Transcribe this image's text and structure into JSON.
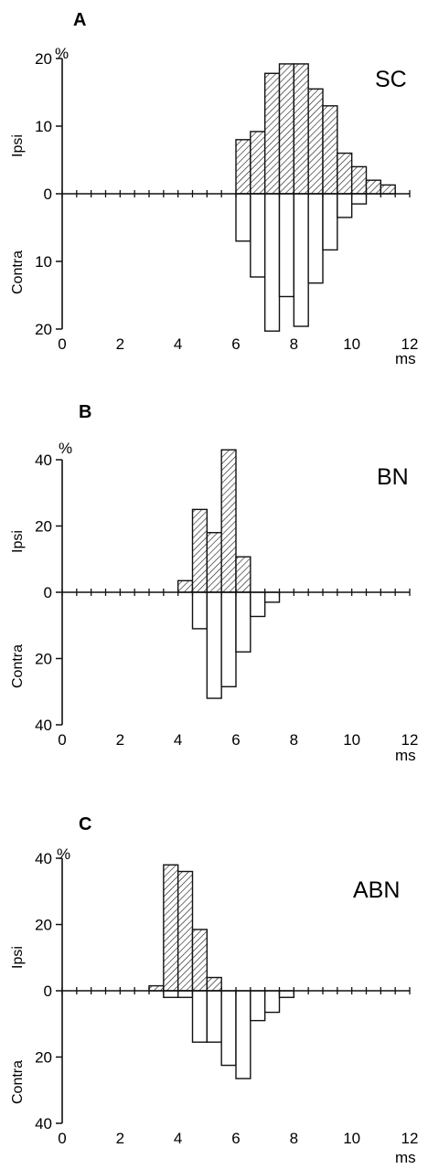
{
  "colors": {
    "ink": "#111111",
    "background": "#ffffff",
    "hatch": "#111111"
  },
  "chart_data": [
    {
      "type": "bar",
      "panel": "A",
      "title": "SC",
      "xlabel": "ms",
      "ylabel_unit": "%",
      "upper_label": "Ipsi",
      "lower_label": "Contra",
      "xlim": [
        0,
        12
      ],
      "ylim": [
        -20,
        20
      ],
      "x_tick_labels": [
        "0",
        "2",
        "4",
        "6",
        "8",
        "10",
        "12"
      ],
      "y_tick_labels": [
        "20",
        "10",
        "0",
        "10",
        "20"
      ],
      "bin_width": 0.5,
      "series": [
        {
          "name": "Ipsi",
          "x": [
            6.25,
            6.75,
            7.25,
            7.75,
            8.25,
            8.75,
            9.25,
            9.75,
            10.25,
            10.75,
            11.25
          ],
          "values": [
            8,
            9.2,
            17.8,
            19.2,
            19.2,
            15.5,
            13,
            6,
            4,
            2,
            1.3
          ]
        },
        {
          "name": "Contra",
          "x": [
            6.25,
            6.75,
            7.25,
            7.75,
            8.25,
            8.75,
            9.25,
            9.75,
            10.25,
            10.75
          ],
          "values": [
            7,
            12.3,
            20.3,
            15.2,
            19.6,
            13.2,
            8.3,
            3.5,
            1.5,
            0
          ]
        }
      ]
    },
    {
      "type": "bar",
      "panel": "B",
      "title": "BN",
      "xlabel": "ms",
      "ylabel_unit": "%",
      "upper_label": "Ipsi",
      "lower_label": "Contra",
      "xlim": [
        0,
        12
      ],
      "ylim": [
        -40,
        40
      ],
      "x_tick_labels": [
        "0",
        "2",
        "4",
        "6",
        "8",
        "10",
        "12"
      ],
      "y_tick_labels": [
        "40",
        "20",
        "0",
        "20",
        "40"
      ],
      "bin_width": 0.5,
      "series": [
        {
          "name": "Ipsi",
          "x": [
            4.25,
            4.75,
            5.25,
            5.75,
            6.25
          ],
          "values": [
            3.5,
            25,
            18,
            43,
            10.7
          ]
        },
        {
          "name": "Contra",
          "x": [
            4.25,
            4.75,
            5.25,
            5.75,
            6.25,
            6.75,
            7.25
          ],
          "values": [
            0,
            11,
            32,
            28.5,
            18,
            7.3,
            3
          ]
        }
      ]
    },
    {
      "type": "bar",
      "panel": "C",
      "title": "ABN",
      "xlabel": "ms",
      "ylabel_unit": "%",
      "upper_label": "Ipsi",
      "lower_label": "Contra",
      "xlim": [
        0,
        12
      ],
      "ylim": [
        -40,
        40
      ],
      "x_tick_labels": [
        "0",
        "2",
        "4",
        "6",
        "8",
        "10",
        "12"
      ],
      "y_tick_labels": [
        "40",
        "20",
        "0",
        "20",
        "40"
      ],
      "bin_width": 0.5,
      "series": [
        {
          "name": "Ipsi",
          "x": [
            3.25,
            3.75,
            4.25,
            4.75,
            5.25
          ],
          "values": [
            1.5,
            38,
            36,
            18.5,
            4
          ]
        },
        {
          "name": "Contra",
          "x": [
            3.75,
            4.25,
            4.75,
            5.25,
            5.75,
            6.25,
            6.75,
            7.25,
            7.75
          ],
          "values": [
            2,
            2,
            15.5,
            15.5,
            22.5,
            26.5,
            9,
            6.5,
            2
          ]
        }
      ]
    }
  ]
}
